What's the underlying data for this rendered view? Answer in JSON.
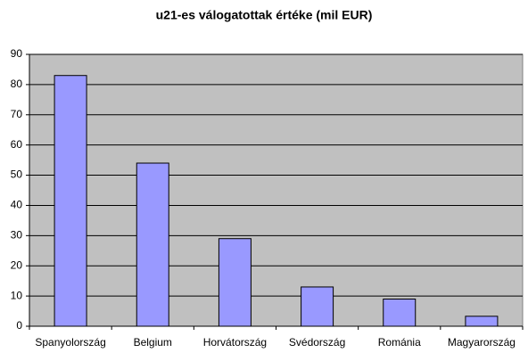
{
  "chart_data": {
    "type": "bar",
    "title": "u21-es válogatottak értéke (mil EUR)",
    "categories": [
      "Spanyolország",
      "Belgium",
      "Horvátország",
      "Svédország",
      "Románia",
      "Magyarország"
    ],
    "values": [
      83,
      54,
      29,
      13,
      9,
      3.3
    ],
    "color": "#9999ff",
    "ylim": [
      0,
      90
    ],
    "yticks": [
      0,
      10,
      20,
      30,
      40,
      50,
      60,
      70,
      80,
      90
    ],
    "grid": true
  }
}
